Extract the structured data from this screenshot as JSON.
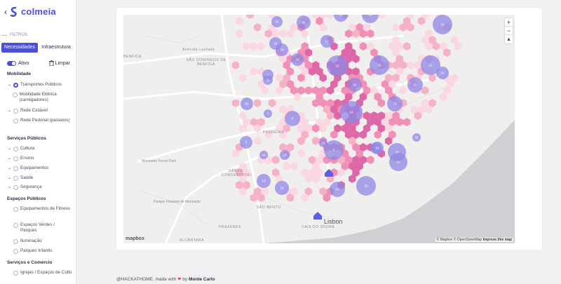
{
  "app": {
    "name": "colmeia"
  },
  "sidebar": {
    "section_label": "FILTROS",
    "tabs": [
      "Necessidades",
      "Infraestrutura"
    ],
    "toggle_label": "Ativo",
    "clear_label": "Limpar",
    "groups": [
      {
        "title": "Mobilidade",
        "items": [
          "Transportes Públicos",
          "Mobilidade Elétrica (carregadores)",
          "Rede Ciclável",
          "Rede Pedonal (passeios)"
        ]
      },
      {
        "title": "Serviços Públicos",
        "items": [
          "Cultura",
          "Ensino",
          "Equipamentos",
          "Saúde",
          "Segurança"
        ]
      },
      {
        "title": "Espaços Públicos",
        "items": [
          "Equipamentos de Fitness",
          "Espaços Verdes / Parques",
          "Iluminação",
          "Parques Infantis"
        ]
      },
      {
        "title": "Serviços e Comércio",
        "items": [
          "Igrejas / Espaços de Culto"
        ]
      }
    ]
  },
  "map": {
    "city_label": "Lisbon",
    "places": [
      "BENFICA",
      "SÃO DOMINGOS DE BENFICA",
      "SANTO CONDESTÁVEL",
      "SÃO BENTO",
      "PRAZERES",
      "CAIS DO SODRÉ",
      "ALCÂNTARA",
      "PEDREIRA",
      "Avenida Lusíada",
      "Monsanto Forest Park",
      "Parque Florestal de Monsanto"
    ],
    "clusters": [
      "31",
      "31",
      "16",
      "68",
      "89",
      "13",
      "32",
      "12",
      "12",
      "10",
      "16",
      "14",
      "18",
      "16",
      "19",
      "13",
      "11",
      "63",
      "14",
      "16",
      "5",
      "6",
      "4",
      "7",
      "7",
      "44",
      "18",
      "13",
      "16",
      "20",
      "14",
      "92",
      "19",
      "21",
      "25",
      "23"
    ],
    "attribution": [
      "© Mapbox",
      "© OpenStreetMap",
      "Improve this map"
    ],
    "logo": "mapbox"
  },
  "footer": {
    "prefix": "@HACKATHOME, made with",
    "suffix": "by",
    "org": "Monte Carlo"
  },
  "colors": {
    "accent": "#4c4fd9",
    "hex_pink": "#f6a7bf",
    "hex_magenta": "#d94f9a",
    "cluster": "#8f87e6"
  }
}
